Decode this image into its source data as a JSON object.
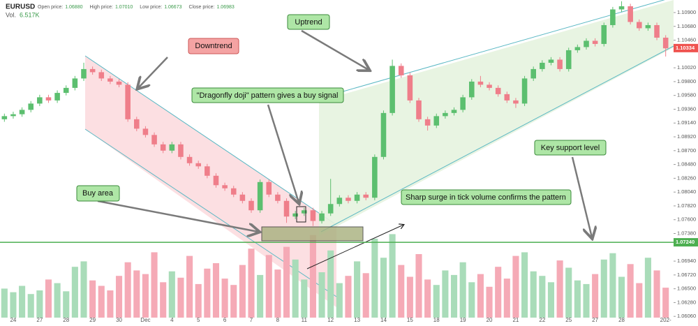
{
  "header": {
    "symbol": "EURUSD",
    "stats": [
      {
        "label": "Open price:",
        "value": "1.06880"
      },
      {
        "label": "High price:",
        "value": "1.07010"
      },
      {
        "label": "Low price:",
        "value": "1.06673"
      },
      {
        "label": "Close price:",
        "value": "1.06983"
      }
    ],
    "volume_label": "Vol.",
    "volume_value": "6.517K"
  },
  "chart_data": {
    "type": "candlestick",
    "annotations": {
      "downtrend": "Downtrend",
      "uptrend": "Uptrend",
      "doji": "\"Dragonfly doji\" pattern gives a buy signal",
      "buy_area": "Buy area",
      "surge": "Sharp surge in tick volume confirms the pattern",
      "support": "Key support level"
    },
    "categories": [
      null,
      "24",
      null,
      null,
      "27",
      null,
      null,
      "28",
      null,
      null,
      "29",
      null,
      null,
      "30",
      null,
      null,
      "Dec",
      null,
      null,
      "4",
      null,
      null,
      "5",
      null,
      null,
      "6",
      null,
      null,
      "7",
      null,
      null,
      "8",
      null,
      null,
      "11",
      null,
      null,
      "12",
      null,
      null,
      "13",
      null,
      null,
      "14",
      null,
      null,
      "15",
      null,
      null,
      "18",
      null,
      null,
      "19",
      null,
      null,
      "20",
      null,
      null,
      "21",
      null,
      null,
      "22",
      null,
      null,
      "25",
      null,
      null,
      "27",
      null,
      null,
      "28",
      null,
      null,
      null,
      null,
      "202-"
    ],
    "open": [
      1.092,
      1.0925,
      1.0928,
      1.0935,
      1.0945,
      1.0955,
      1.095,
      1.0962,
      1.097,
      1.0985,
      1.1,
      1.0995,
      1.0985,
      1.098,
      1.0975,
      1.092,
      1.0905,
      1.0895,
      1.088,
      1.087,
      1.088,
      1.086,
      1.085,
      1.0845,
      1.083,
      1.0815,
      1.081,
      1.08,
      1.079,
      1.0775,
      1.082,
      1.08,
      1.079,
      1.0765,
      1.077,
      1.0775,
      1.0758,
      1.077,
      1.0785,
      1.0795,
      1.079,
      1.08,
      1.0795,
      1.086,
      1.093,
      1.1005,
      1.099,
      1.095,
      1.092,
      1.091,
      1.0925,
      1.093,
      1.0935,
      1.0955,
      1.098,
      1.0975,
      1.097,
      1.096,
      1.095,
      1.0945,
      1.0985,
      1.1,
      1.101,
      1.1015,
      1.1,
      1.103,
      1.1035,
      1.1045,
      1.104,
      1.107,
      1.1095,
      1.11,
      1.1075,
      1.1065,
      1.107,
      1.105
    ],
    "high": [
      1.0929,
      1.0932,
      1.0939,
      1.0949,
      1.0959,
      1.0959,
      1.0966,
      1.0974,
      1.0989,
      1.101,
      1.1004,
      1.0999,
      1.0989,
      1.0984,
      1.0979,
      1.0924,
      1.0909,
      1.0899,
      1.0884,
      1.0884,
      1.0884,
      1.0864,
      1.0854,
      1.0849,
      1.0834,
      1.0819,
      1.0814,
      1.0804,
      1.0794,
      1.0824,
      1.0824,
      1.0804,
      1.0794,
      1.0774,
      1.0779,
      1.0779,
      1.0774,
      1.0825,
      1.0799,
      1.0799,
      1.0804,
      1.0804,
      1.0864,
      1.0934,
      1.1015,
      1.1009,
      1.0994,
      1.0954,
      1.0924,
      1.0929,
      1.0934,
      1.0939,
      1.0959,
      1.0984,
      1.0989,
      1.0979,
      1.0974,
      1.0964,
      1.0954,
      1.0989,
      1.1004,
      1.1014,
      1.1019,
      1.1019,
      1.1034,
      1.1039,
      1.1049,
      1.1049,
      1.1074,
      1.1099,
      1.1108,
      1.1104,
      1.1079,
      1.1074,
      1.1074,
      1.1054
    ],
    "low": [
      1.0916,
      1.0921,
      1.0924,
      1.0931,
      1.0941,
      1.0946,
      1.0946,
      1.0958,
      1.0966,
      1.0981,
      1.0991,
      1.0981,
      1.0976,
      1.0971,
      1.0916,
      1.0901,
      1.0891,
      1.0876,
      1.0866,
      1.0866,
      1.0856,
      1.0846,
      1.0841,
      1.0826,
      1.0811,
      1.0806,
      1.0796,
      1.0786,
      1.0771,
      1.0771,
      1.0796,
      1.0786,
      1.0755,
      1.0761,
      1.0766,
      1.075,
      1.0754,
      1.0766,
      1.0781,
      1.0786,
      1.0786,
      1.0791,
      1.0791,
      1.0856,
      1.0926,
      1.0986,
      1.0946,
      1.0916,
      1.0902,
      1.0906,
      1.0921,
      1.0926,
      1.0931,
      1.0951,
      1.0971,
      1.0966,
      1.0956,
      1.0946,
      1.0938,
      1.0941,
      1.0981,
      1.0996,
      1.1006,
      1.0996,
      1.0996,
      1.1026,
      1.1031,
      1.1036,
      1.1036,
      1.1066,
      1.1091,
      1.1071,
      1.1061,
      1.1061,
      1.1046,
      1.102
    ],
    "close": [
      1.0925,
      1.0928,
      1.0935,
      1.0945,
      1.0955,
      1.095,
      1.0962,
      1.097,
      1.0985,
      1.1,
      1.0995,
      1.0985,
      1.098,
      1.0975,
      1.092,
      1.0905,
      1.0895,
      1.088,
      1.087,
      1.088,
      1.086,
      1.085,
      1.0845,
      1.083,
      1.0815,
      1.081,
      1.08,
      1.079,
      1.0775,
      1.082,
      1.08,
      1.079,
      1.0765,
      1.077,
      1.0775,
      1.0758,
      1.077,
      1.0785,
      1.0795,
      1.079,
      1.08,
      1.0795,
      1.086,
      1.093,
      1.1005,
      1.099,
      1.095,
      1.092,
      1.091,
      1.0925,
      1.093,
      1.0935,
      1.0955,
      1.098,
      1.0975,
      1.097,
      1.096,
      1.095,
      1.0945,
      1.0985,
      1.1,
      1.101,
      1.1015,
      1.1,
      1.103,
      1.1035,
      1.1045,
      1.104,
      1.107,
      1.1095,
      1.11,
      1.1075,
      1.1065,
      1.107,
      1.105,
      1.1033
    ],
    "volume": [
      3200,
      2800,
      3500,
      2600,
      3000,
      4200,
      3800,
      2900,
      5600,
      6200,
      4100,
      3500,
      3000,
      4600,
      6100,
      5200,
      4800,
      7200,
      3900,
      5100,
      4400,
      6800,
      3700,
      5400,
      6000,
      4300,
      3600,
      5800,
      7600,
      4700,
      6900,
      5300,
      7800,
      6400,
      4200,
      9100,
      5000,
      7400,
      3800,
      4600,
      6200,
      4900,
      8700,
      6600,
      9200,
      5800,
      4500,
      7000,
      4200,
      3600,
      5200,
      4700,
      6100,
      3900,
      4800,
      3400,
      5600,
      4300,
      6800,
      7200,
      5100,
      4600,
      3900,
      6300,
      5500,
      4100,
      3700,
      4800,
      6400,
      7100,
      4500,
      5900,
      3800,
      6600,
      5200,
      3300
    ],
    "up_color": "#5cbf6f",
    "down_color": "#ef7e8a",
    "up_volume_color": "#a9dcb9",
    "down_volume_color": "#f5aab6",
    "ylim": [
      1.0604,
      1.111
    ],
    "volume_ylim": [
      0,
      10000
    ],
    "grid": false,
    "yticks": [
      {
        "value": 1.109,
        "label": "1.10900"
      },
      {
        "value": 1.1068,
        "label": "1.10680"
      },
      {
        "value": 1.1046,
        "label": "1.10460"
      },
      {
        "value": 1.1002,
        "label": "1.10020"
      },
      {
        "value": 1.098,
        "label": "1.09800"
      },
      {
        "value": 1.0958,
        "label": "1.09580"
      },
      {
        "value": 1.0936,
        "label": "1.09360"
      },
      {
        "value": 1.0914,
        "label": "1.09140"
      },
      {
        "value": 1.0892,
        "label": "1.08920"
      },
      {
        "value": 1.087,
        "label": "1.08700"
      },
      {
        "value": 1.0848,
        "label": "1.08480"
      },
      {
        "value": 1.0826,
        "label": "1.08260"
      },
      {
        "value": 1.0804,
        "label": "1.08040"
      },
      {
        "value": 1.0782,
        "label": "1.07820"
      },
      {
        "value": 1.076,
        "label": "1.07600"
      },
      {
        "value": 1.0738,
        "label": "1.07380"
      },
      {
        "value": 1.0694,
        "label": "1.06940"
      },
      {
        "value": 1.0672,
        "label": "1.06720"
      },
      {
        "value": 1.065,
        "label": "1.06500"
      },
      {
        "value": 1.0628,
        "label": "1.06280"
      },
      {
        "value": 1.0606,
        "label": "1.06060"
      }
    ],
    "current_price": {
      "value": 1.10334,
      "label": "1.10334",
      "color": "#ef5350"
    },
    "support_level": {
      "value": 1.0724,
      "label": "1.07240",
      "color": "#4caf50"
    }
  }
}
